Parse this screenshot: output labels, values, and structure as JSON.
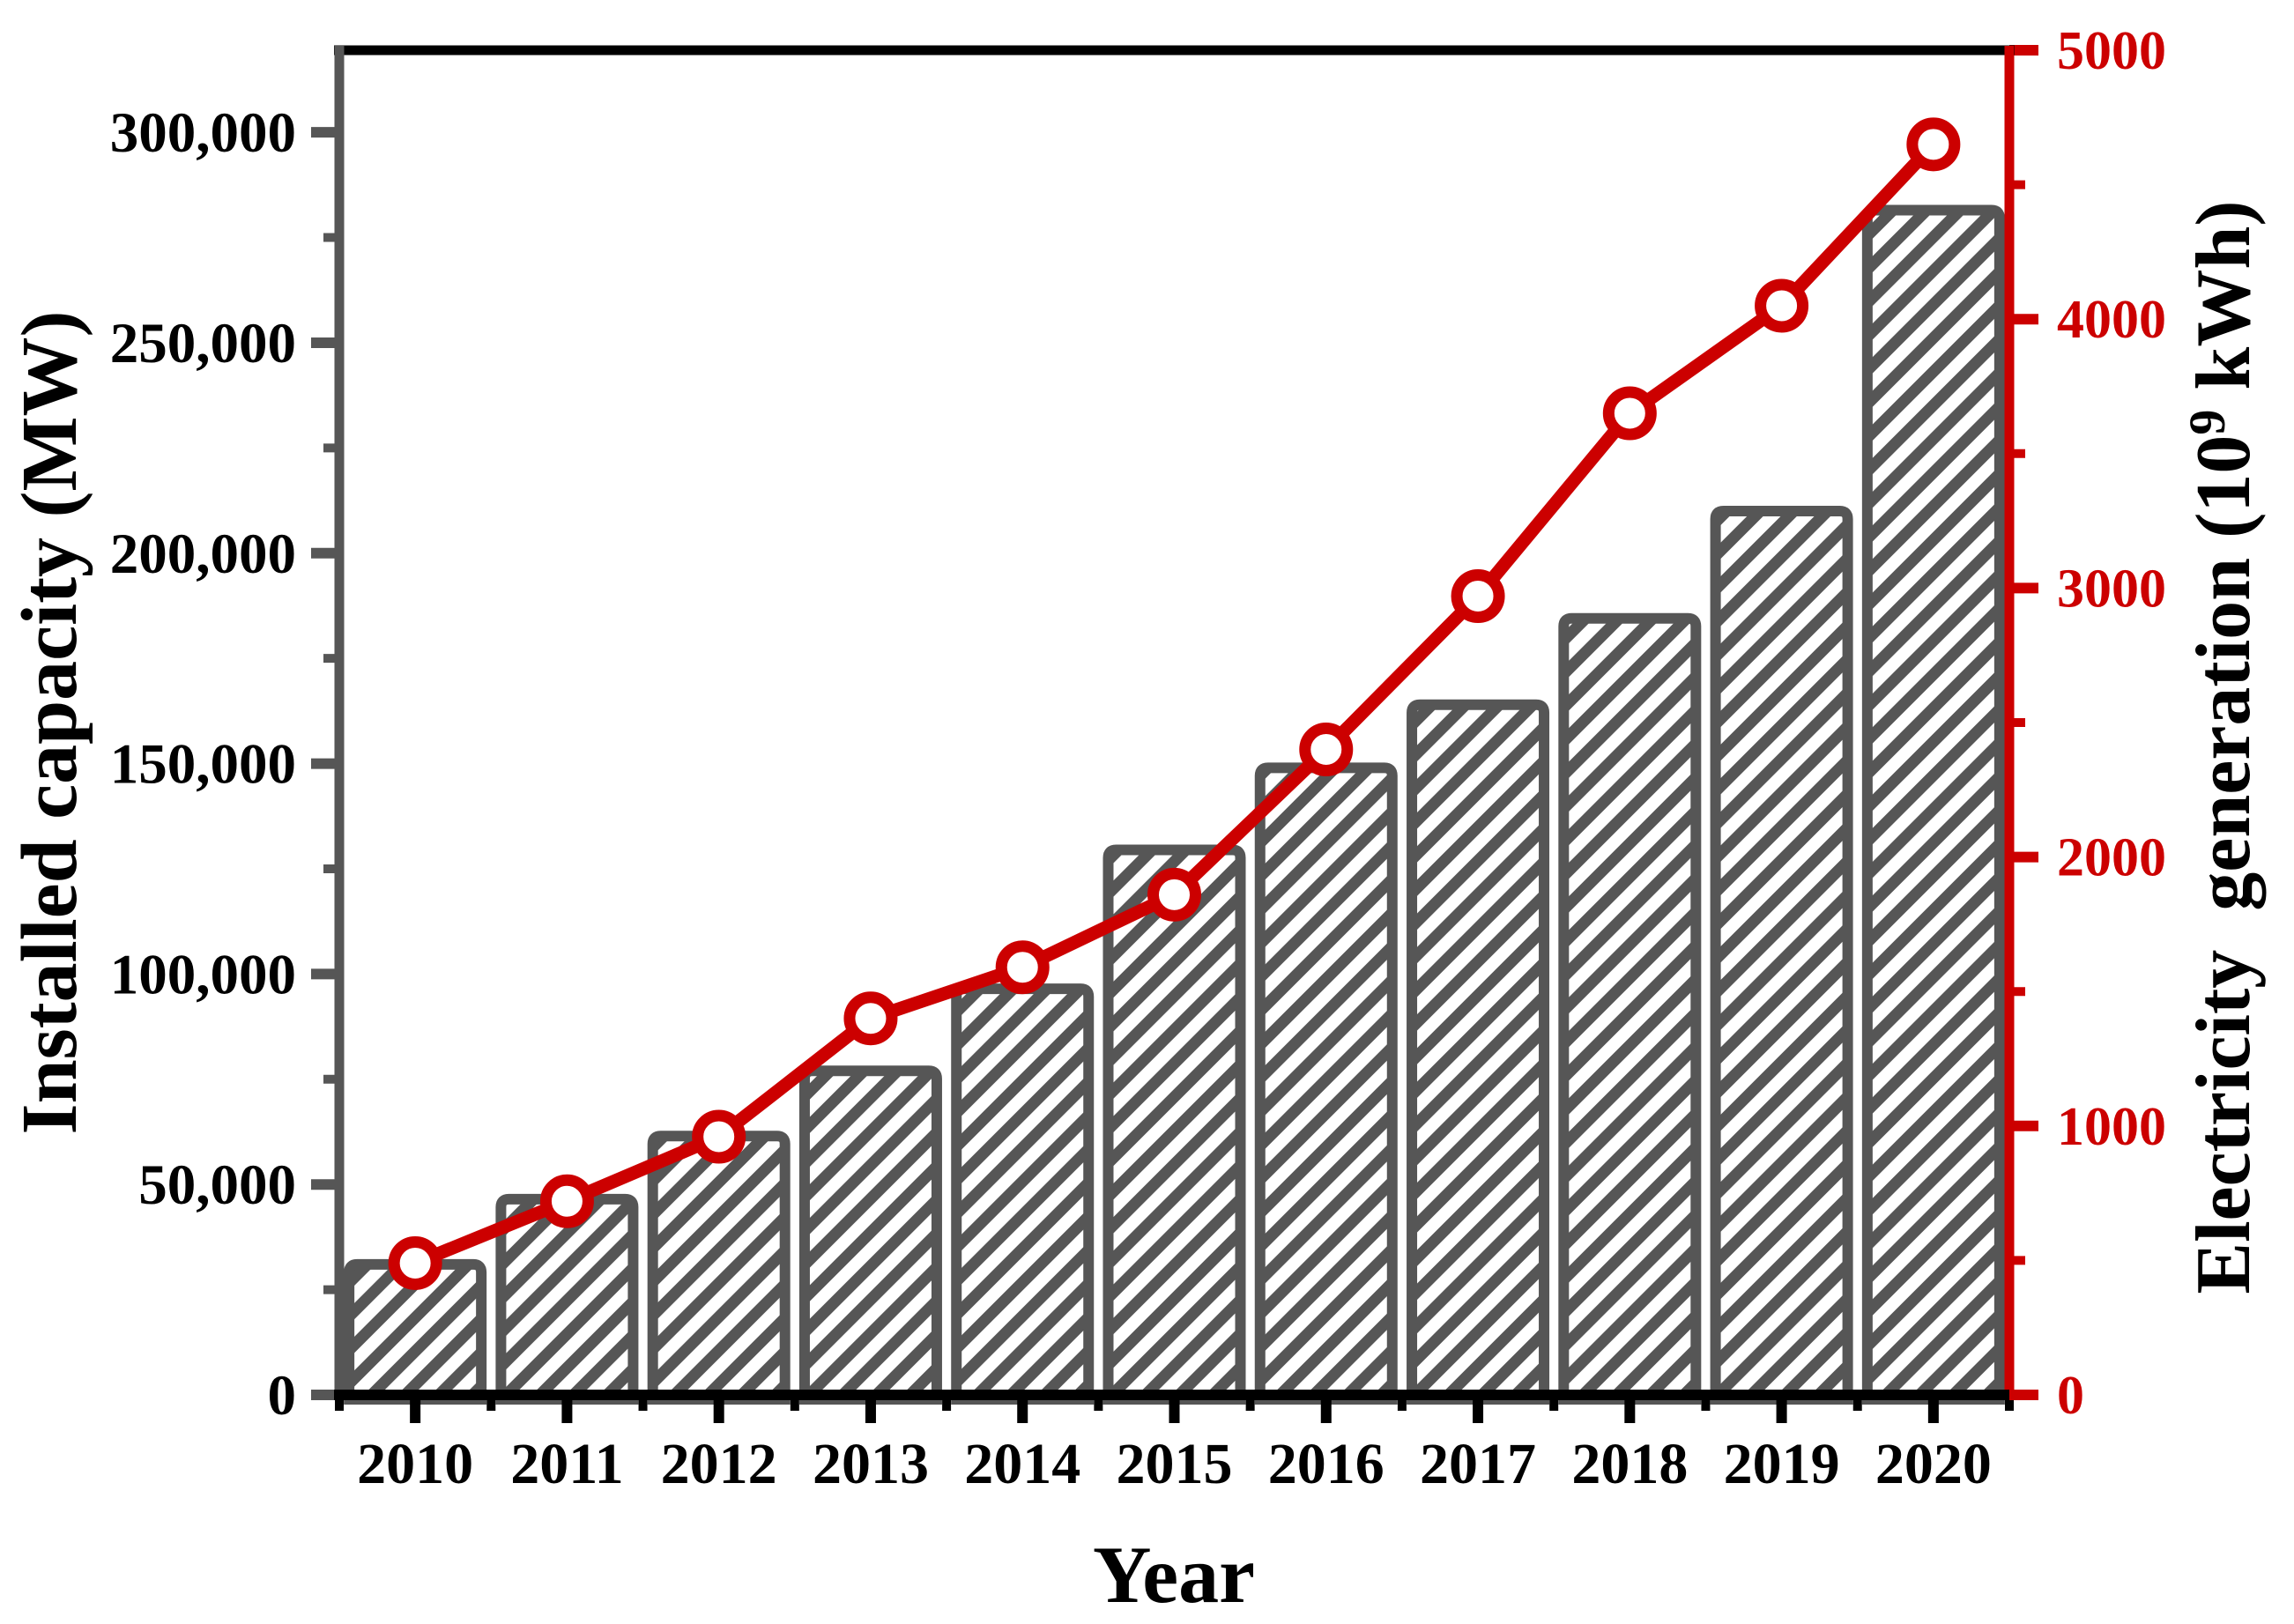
{
  "chart_data": {
    "type": "combo-bar-line",
    "title": "",
    "categories": [
      "2010",
      "2011",
      "2012",
      "2013",
      "2014",
      "2015",
      "2016",
      "2017",
      "2018",
      "2019",
      "2020"
    ],
    "series": [
      {
        "name": "Installed capacity",
        "type": "bar",
        "axis": "left",
        "unit": "MW",
        "values": [
          31000,
          46500,
          61500,
          77000,
          96500,
          129500,
          149000,
          164000,
          184500,
          210000,
          281500
        ]
      },
      {
        "name": "Electricity generation",
        "type": "line",
        "axis": "right",
        "unit": "10^9 kWh",
        "values": [
          490,
          720,
          960,
          1400,
          1590,
          1860,
          2400,
          2970,
          3650,
          4050,
          4650
        ]
      }
    ],
    "left_axis": {
      "title": "Installed capacity (MW)",
      "min": 0,
      "max": 319500,
      "tick_interval": 50000,
      "major_ticks": [
        {
          "v": 0,
          "label": "0"
        },
        {
          "v": 50000,
          "label": "50,000"
        },
        {
          "v": 100000,
          "label": "100,000"
        },
        {
          "v": 150000,
          "label": "150,000"
        },
        {
          "v": 200000,
          "label": "200,000"
        },
        {
          "v": 250000,
          "label": "250,000"
        },
        {
          "v": 300000,
          "label": "300,000"
        }
      ],
      "minor_tick_values": [
        25000,
        75000,
        125000,
        175000,
        225000,
        275000
      ]
    },
    "right_axis": {
      "title_base": "Electricity  generation (10",
      "title_sup": "9",
      "title_end": " kWh)",
      "min": 0,
      "max": 5000,
      "tick_interval": 1000,
      "major_ticks": [
        {
          "v": 0,
          "label": "0"
        },
        {
          "v": 1000,
          "label": "1000"
        },
        {
          "v": 2000,
          "label": "2000"
        },
        {
          "v": 3000,
          "label": "3000"
        },
        {
          "v": 4000,
          "label": "4000"
        },
        {
          "v": 5000,
          "label": "5000"
        }
      ],
      "minor_tick_values": [
        500,
        1500,
        2500,
        3500,
        4500
      ]
    },
    "x_axis": {
      "title": "Year"
    },
    "colors": {
      "bar_border": "#565656",
      "bar_hatch": "#565656",
      "bar_fill": "#ffffff",
      "line": "#cc0000",
      "left_axis": "#565656",
      "right_axis": "#cc0000",
      "bottom_axis": "#000000",
      "top_border": "#000000",
      "text": "#000000"
    },
    "legend": null,
    "grid": false
  }
}
